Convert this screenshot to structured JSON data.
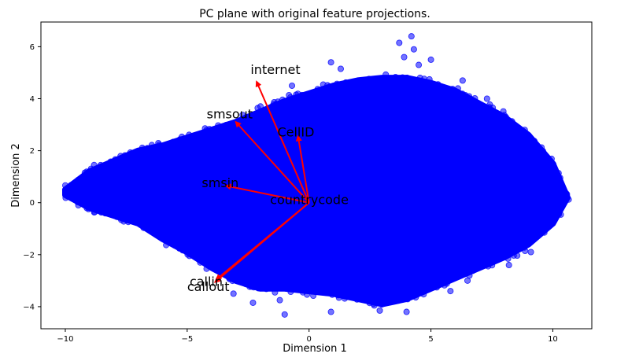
{
  "chart_data": {
    "type": "scatter",
    "title": "PC plane with original feature projections.",
    "xlabel": "Dimension 1",
    "ylabel": "Dimension 2",
    "xlim": [
      -11,
      11.6
    ],
    "ylim": [
      -4.85,
      6.95
    ],
    "xticks": [
      -10,
      -5,
      0,
      5,
      10
    ],
    "yticks": [
      -4,
      -2,
      0,
      2,
      4,
      6
    ],
    "grid": false,
    "colors": {
      "points": "#0000ff",
      "arrows": "#ff0000",
      "text": "#000000"
    },
    "point_cloud": {
      "description_of_extent": "dense cluster spanning roughly x -10 to 10.5, y -4.3 to 6.4",
      "outline_upper": [
        [
          -10,
          0.5
        ],
        [
          -9,
          1.2
        ],
        [
          -8,
          1.6
        ],
        [
          -7,
          2.0
        ],
        [
          -6,
          2.2
        ],
        [
          -5,
          2.5
        ],
        [
          -4,
          2.8
        ],
        [
          -3,
          3.1
        ],
        [
          -2,
          3.5
        ],
        [
          -1,
          3.9
        ],
        [
          0,
          4.2
        ],
        [
          1,
          4.5
        ],
        [
          2,
          4.7
        ],
        [
          3,
          4.8
        ],
        [
          4,
          4.8
        ],
        [
          5,
          4.6
        ],
        [
          6,
          4.3
        ],
        [
          7,
          3.8
        ],
        [
          8,
          3.3
        ],
        [
          9,
          2.6
        ],
        [
          10,
          1.5
        ],
        [
          10.6,
          0.2
        ]
      ],
      "outline_lower": [
        [
          10.6,
          0.2
        ],
        [
          10,
          -0.8
        ],
        [
          9,
          -1.6
        ],
        [
          8,
          -2.1
        ],
        [
          7,
          -2.5
        ],
        [
          6,
          -2.9
        ],
        [
          5,
          -3.3
        ],
        [
          4,
          -3.7
        ],
        [
          3,
          -3.9
        ],
        [
          2,
          -3.7
        ],
        [
          1,
          -3.5
        ],
        [
          0,
          -3.4
        ],
        [
          -1,
          -3.3
        ],
        [
          -2,
          -3.3
        ],
        [
          -3,
          -3.0
        ],
        [
          -4,
          -2.5
        ],
        [
          -5,
          -1.9
        ],
        [
          -6,
          -1.4
        ],
        [
          -7,
          -0.8
        ],
        [
          -8,
          -0.5
        ],
        [
          -9,
          -0.2
        ],
        [
          -10,
          0.3
        ]
      ],
      "outliers": [
        [
          4.2,
          6.4
        ],
        [
          3.7,
          6.15
        ],
        [
          4.3,
          5.9
        ],
        [
          3.9,
          5.6
        ],
        [
          5.0,
          5.5
        ],
        [
          4.5,
          5.3
        ],
        [
          0.9,
          5.4
        ],
        [
          1.3,
          5.15
        ],
        [
          -0.7,
          4.5
        ],
        [
          6.3,
          4.7
        ],
        [
          7.3,
          4.0
        ],
        [
          0.9,
          -4.2
        ],
        [
          -1.0,
          -4.3
        ],
        [
          4.0,
          -4.2
        ],
        [
          2.9,
          -4.15
        ],
        [
          -2.3,
          -3.85
        ],
        [
          -1.2,
          -3.75
        ],
        [
          5.8,
          -3.4
        ],
        [
          6.5,
          -3.0
        ],
        [
          -3.1,
          -3.5
        ],
        [
          8.2,
          -2.4
        ],
        [
          9.1,
          -1.9
        ]
      ]
    },
    "arrows": [
      {
        "name": "internet",
        "dx": -2.15,
        "dy": 4.65,
        "label_x": -2.4,
        "label_y": 4.95
      },
      {
        "name": "smsout",
        "dx": -3.0,
        "dy": 3.1,
        "label_x": -4.2,
        "label_y": 3.25
      },
      {
        "name": "CellID",
        "dx": -0.45,
        "dy": 2.55,
        "label_x": -1.3,
        "label_y": 2.55
      },
      {
        "name": "smsin",
        "dx": -3.4,
        "dy": 0.65,
        "label_x": -4.4,
        "label_y": 0.6
      },
      {
        "name": "countrycode",
        "dx": 0.0,
        "dy": 0.0,
        "label_x": -1.6,
        "label_y": -0.05
      },
      {
        "name": "callin",
        "dx": -3.8,
        "dy": -2.95,
        "label_x": -4.9,
        "label_y": -3.2
      },
      {
        "name": "callout",
        "dx": -3.85,
        "dy": -3.05,
        "label_x": -5.0,
        "label_y": -3.4
      }
    ]
  }
}
